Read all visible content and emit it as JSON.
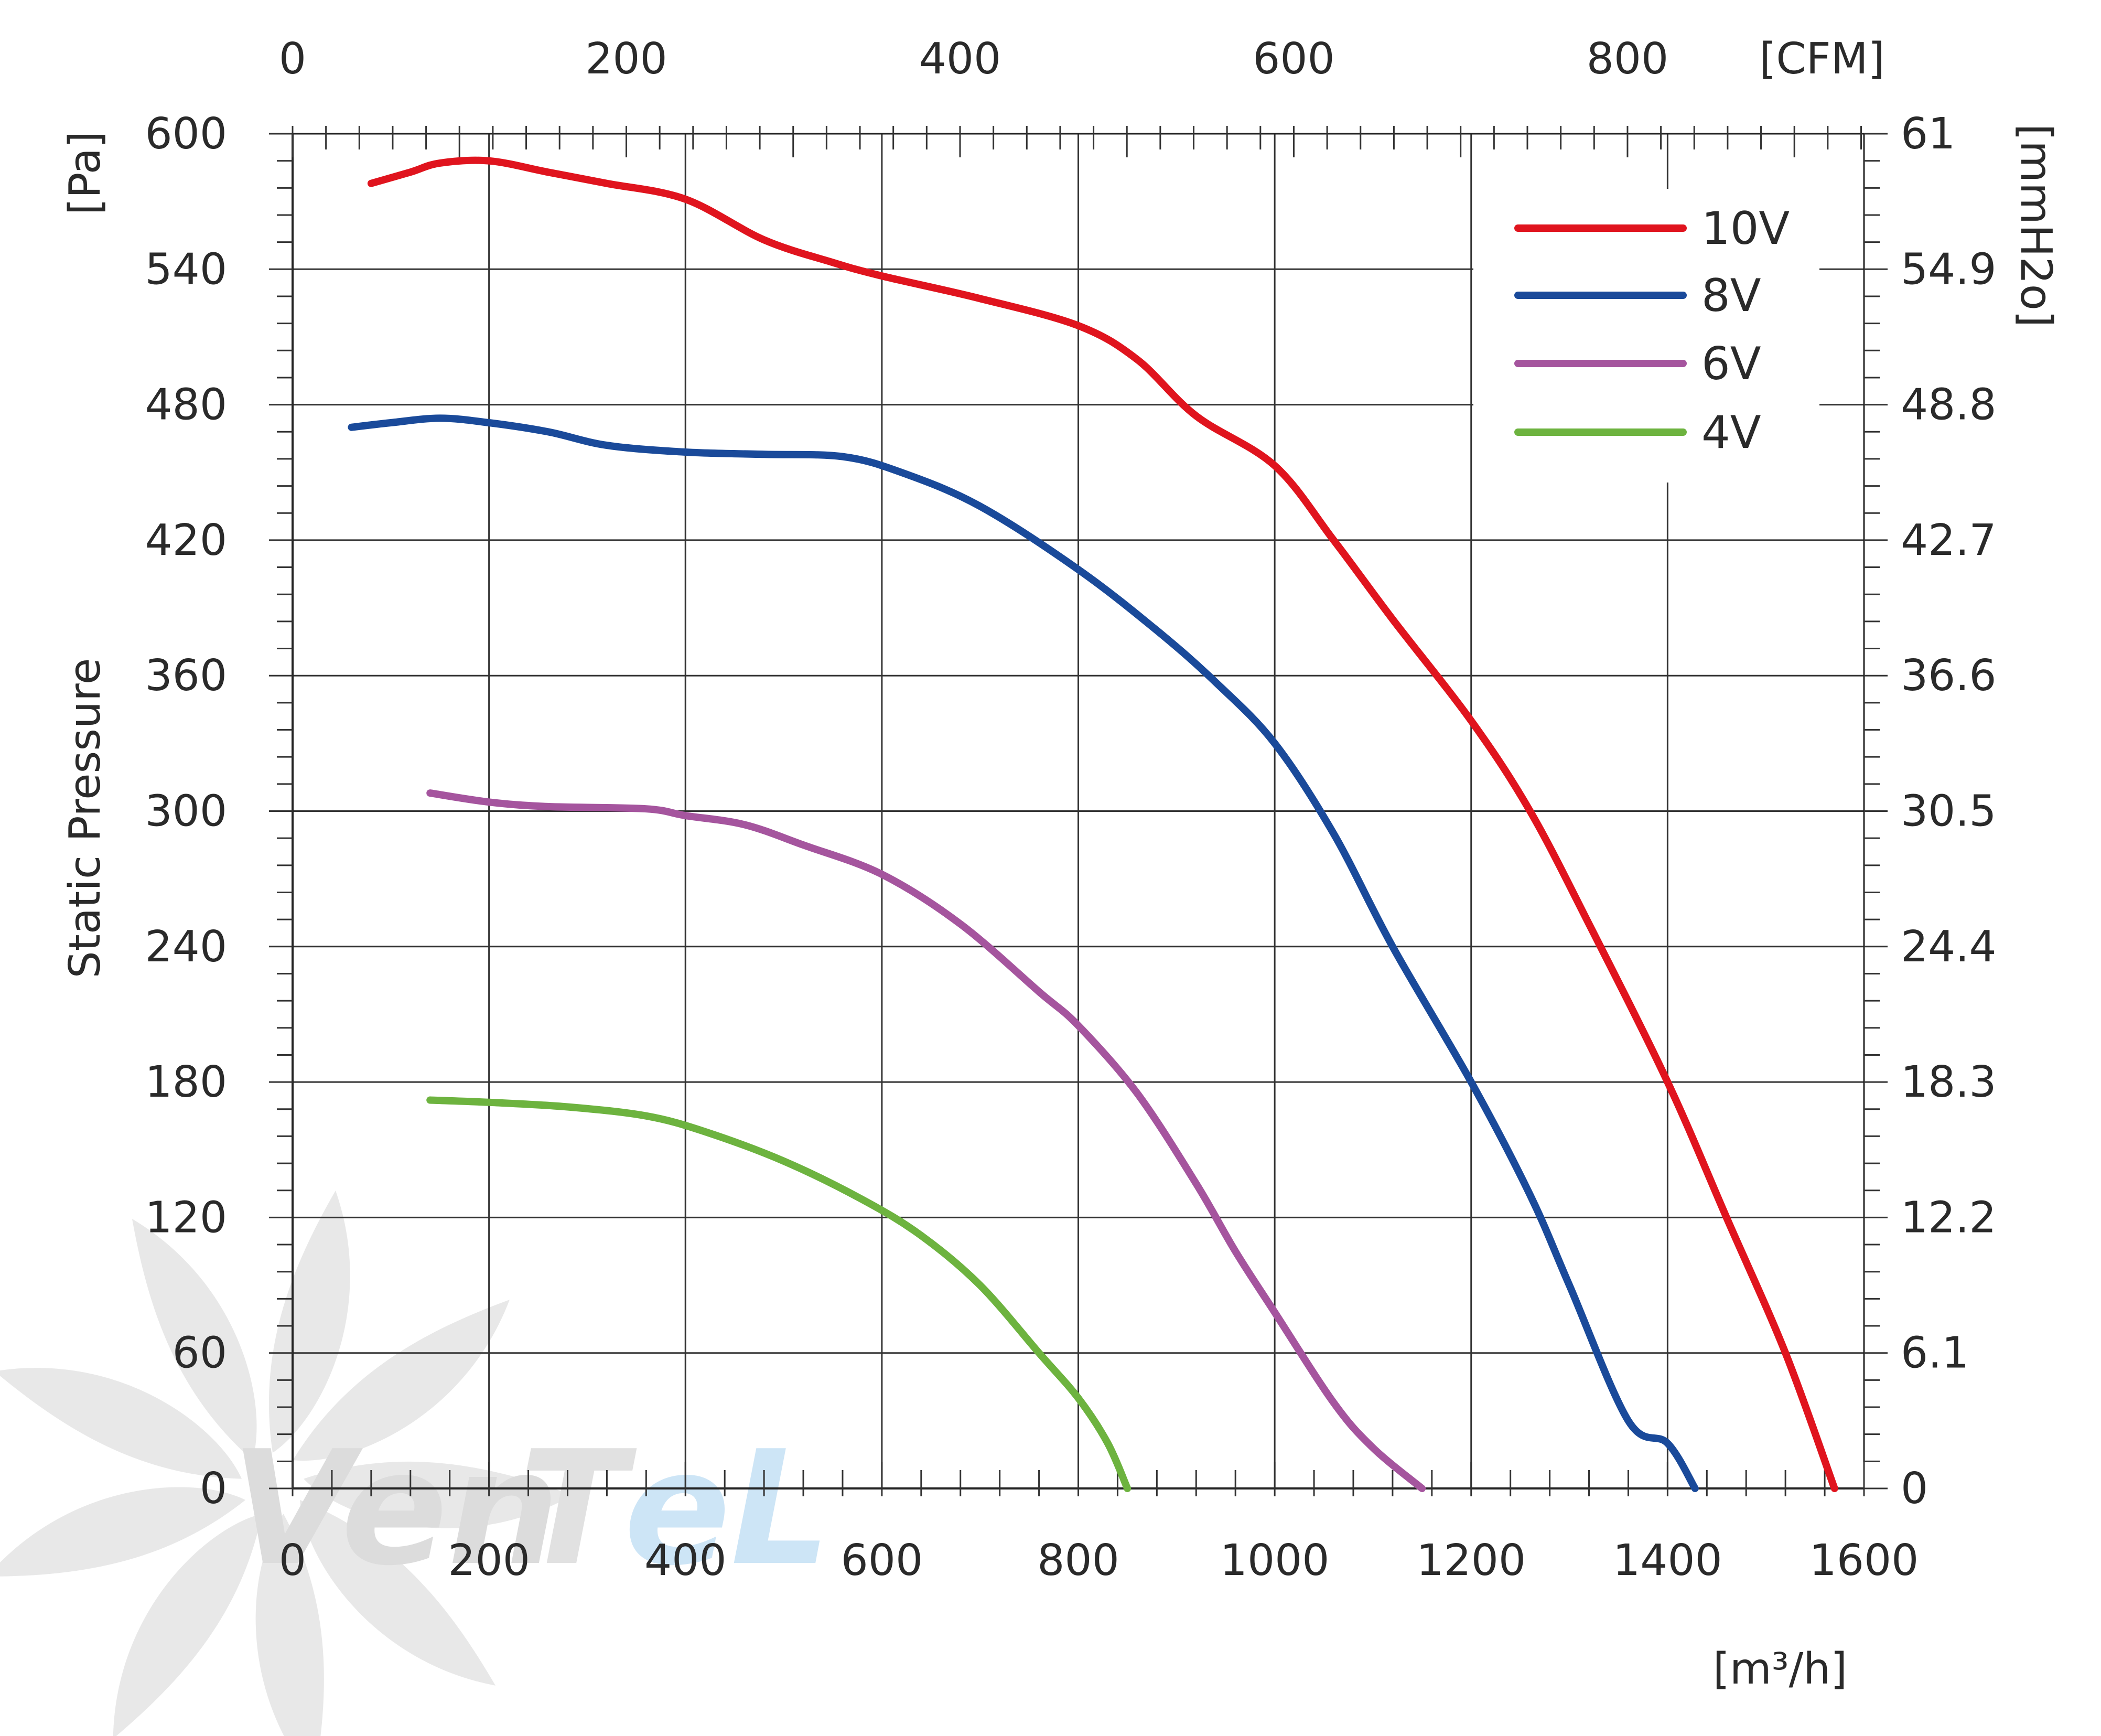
{
  "chart_data": {
    "type": "line",
    "xlabel": "[m³/h]",
    "ylabel": "Static Pressure",
    "ylabel_unit": "[Pa]",
    "secondary_x_unit": "[CFM]",
    "secondary_y_unit": "[mmH2o]",
    "xlim": [
      0,
      1600
    ],
    "ylim": [
      0,
      600
    ],
    "x_ticks": [
      "0",
      "200",
      "400",
      "600",
      "800",
      "1000",
      "1200",
      "1400",
      "1600"
    ],
    "y_ticks": [
      "0",
      "60",
      "120",
      "180",
      "240",
      "300",
      "360",
      "420",
      "480",
      "540",
      "600"
    ],
    "cfm_ticks": [
      "0",
      "200",
      "400",
      "600",
      "800"
    ],
    "cfm_values": [
      0,
      200,
      400,
      600,
      800
    ],
    "mmh2o_ticks": [
      "0",
      "6.1",
      "12.2",
      "18.3",
      "24.4",
      "30.5",
      "36.6",
      "42.7",
      "48.8",
      "54.9",
      "61"
    ],
    "grid": true,
    "legend_position": "top-right",
    "series": [
      {
        "name": "10V",
        "color": "#e0141e",
        "x": [
          80,
          120,
          150,
          200,
          260,
          320,
          400,
          480,
          550,
          600,
          700,
          800,
          860,
          920,
          1000,
          1060,
          1120,
          1200,
          1260,
          1320,
          1400,
          1460,
          1520,
          1570
        ],
        "y": [
          578,
          583,
          587,
          588,
          583,
          578,
          571,
          553,
          543,
          537,
          527,
          515,
          500,
          475,
          453,
          420,
          385,
          340,
          300,
          250,
          180,
          120,
          60,
          0
        ]
      },
      {
        "name": "8V",
        "color": "#1a4a9a",
        "x": [
          60,
          100,
          150,
          200,
          260,
          320,
          400,
          480,
          560,
          620,
          700,
          800,
          880,
          940,
          1000,
          1060,
          1120,
          1200,
          1260,
          1300,
          1360,
          1400,
          1428
        ],
        "y": [
          470,
          472,
          474,
          472,
          468,
          462,
          459,
          458,
          457,
          450,
          435,
          407,
          380,
          357,
          330,
          290,
          240,
          180,
          130,
          90,
          30,
          20,
          0
        ]
      },
      {
        "name": "6V",
        "color": "#a5559e",
        "x": [
          140,
          200,
          260,
          360,
          400,
          460,
          520,
          600,
          680,
          760,
          800,
          860,
          920,
          960,
          1000,
          1060,
          1100,
          1150
        ],
        "y": [
          308,
          304,
          302,
          301,
          298,
          294,
          285,
          272,
          250,
          220,
          205,
          175,
          135,
          105,
          78,
          38,
          18,
          0
        ]
      },
      {
        "name": "4V",
        "color": "#6db33f",
        "x": [
          140,
          200,
          280,
          360,
          420,
          500,
          580,
          640,
          700,
          760,
          800,
          830,
          850
        ],
        "y": [
          172,
          171,
          169,
          165,
          158,
          145,
          128,
          112,
          90,
          60,
          40,
          20,
          0
        ]
      }
    ]
  }
}
